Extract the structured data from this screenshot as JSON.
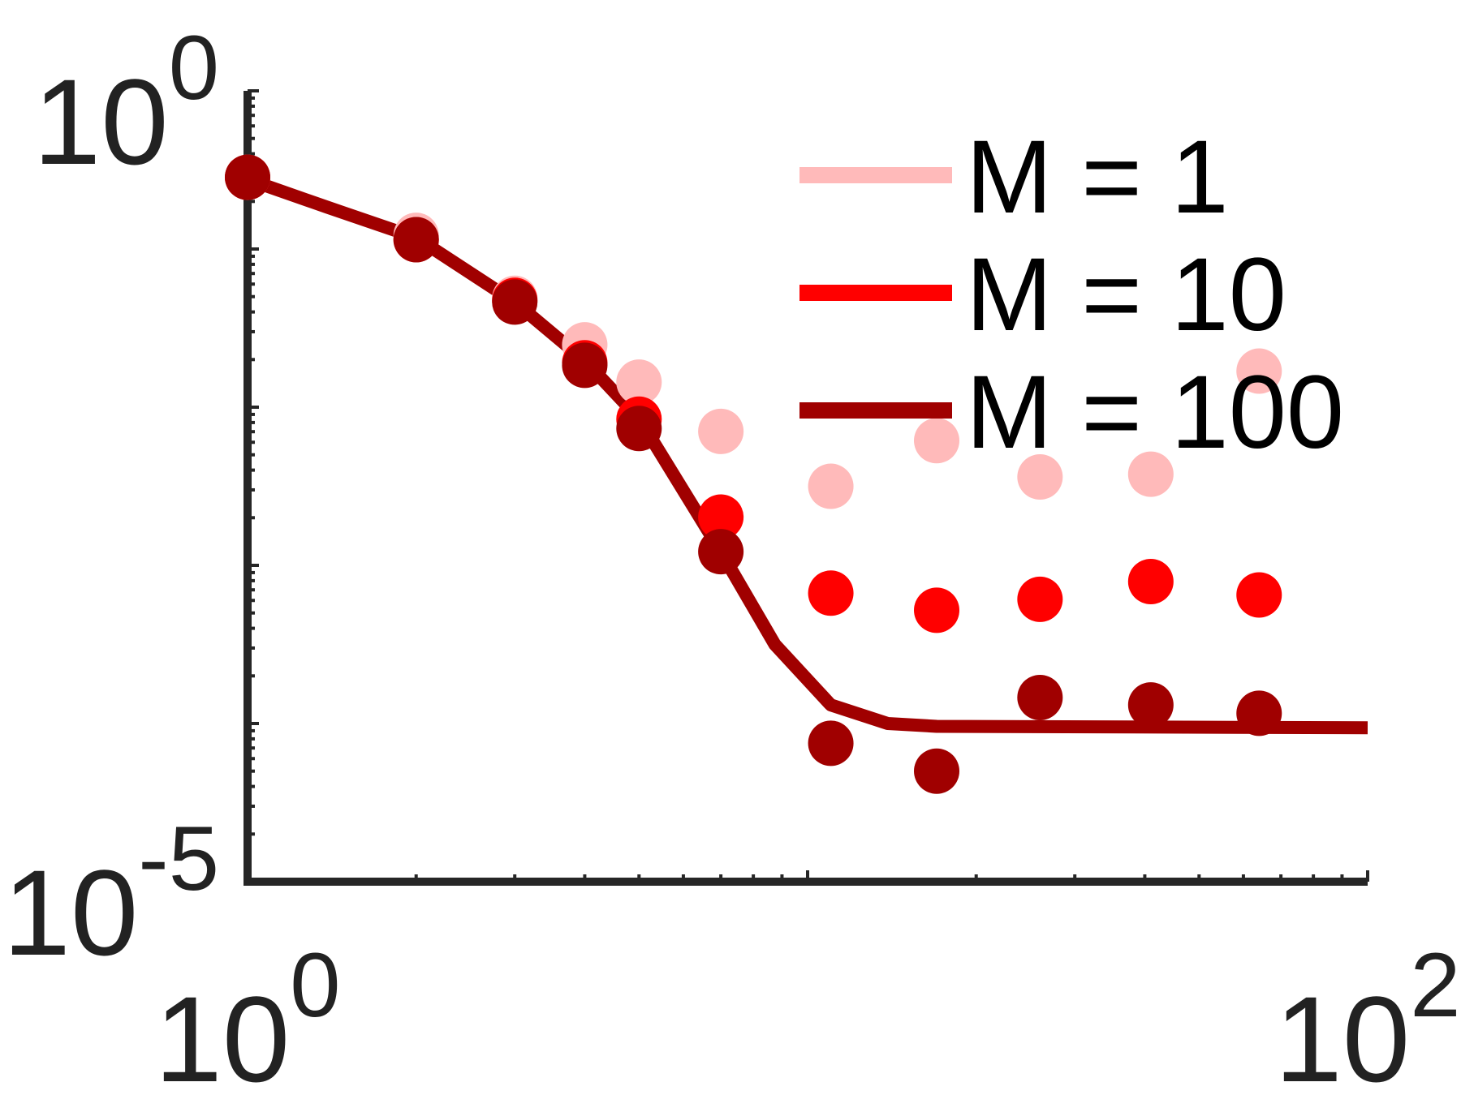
{
  "chart_data": {
    "type": "scatter",
    "xlog": true,
    "ylog": true,
    "xlim": [
      1,
      100
    ],
    "ylim": [
      1e-05,
      1
    ],
    "xticks": [
      {
        "value": 1,
        "label": "10",
        "exponent": "0"
      },
      {
        "value": 100,
        "label": "10",
        "exponent": "2"
      }
    ],
    "yticks": [
      {
        "value": 1e-05,
        "label": "10",
        "exponent": "-5"
      },
      {
        "value": 1,
        "label": "10",
        "exponent": "0"
      }
    ],
    "minor_ticks": true,
    "legend": "top-right",
    "series": [
      {
        "name": "M = 1",
        "color": "#ffbaba",
        "x": [
          1,
          2,
          3,
          4,
          5,
          7,
          11,
          17,
          26,
          41,
          64
        ],
        "values": [
          0.284,
          0.122,
          0.0488,
          0.0248,
          0.0144,
          0.00703,
          0.00316,
          0.00614,
          0.00362,
          0.00377,
          0.0169
        ]
      },
      {
        "name": "M = 10",
        "color": "#ff0000",
        "x": [
          1,
          2,
          3,
          4,
          5,
          7,
          11,
          17,
          26,
          41,
          64
        ],
        "values": [
          0.284,
          0.1146,
          0.0474,
          0.0191,
          0.0084,
          0.00202,
          0.000667,
          0.00052,
          0.00061,
          0.00079,
          0.00065
        ]
      },
      {
        "name": "M = 100",
        "color": "#a00000",
        "x": [
          1,
          2,
          3,
          4,
          5,
          7,
          11,
          17,
          26,
          41,
          64
        ],
        "values": [
          0.284,
          0.1146,
          0.0462,
          0.0184,
          0.00733,
          0.00122,
          7.5e-05,
          5e-05,
          0.000146,
          0.000131,
          0.000116
        ],
        "line": {
          "x": [
            1,
            1.386,
            2,
            3,
            4,
            5,
            7,
            8.74,
            11,
            13.9,
            17,
            100
          ],
          "values": [
            0.276,
            0.184,
            0.118,
            0.0462,
            0.0197,
            0.0085,
            0.00122,
            0.000316,
            0.000131,
            0.0001,
            9.6e-05,
            9.4e-05
          ]
        }
      }
    ]
  }
}
